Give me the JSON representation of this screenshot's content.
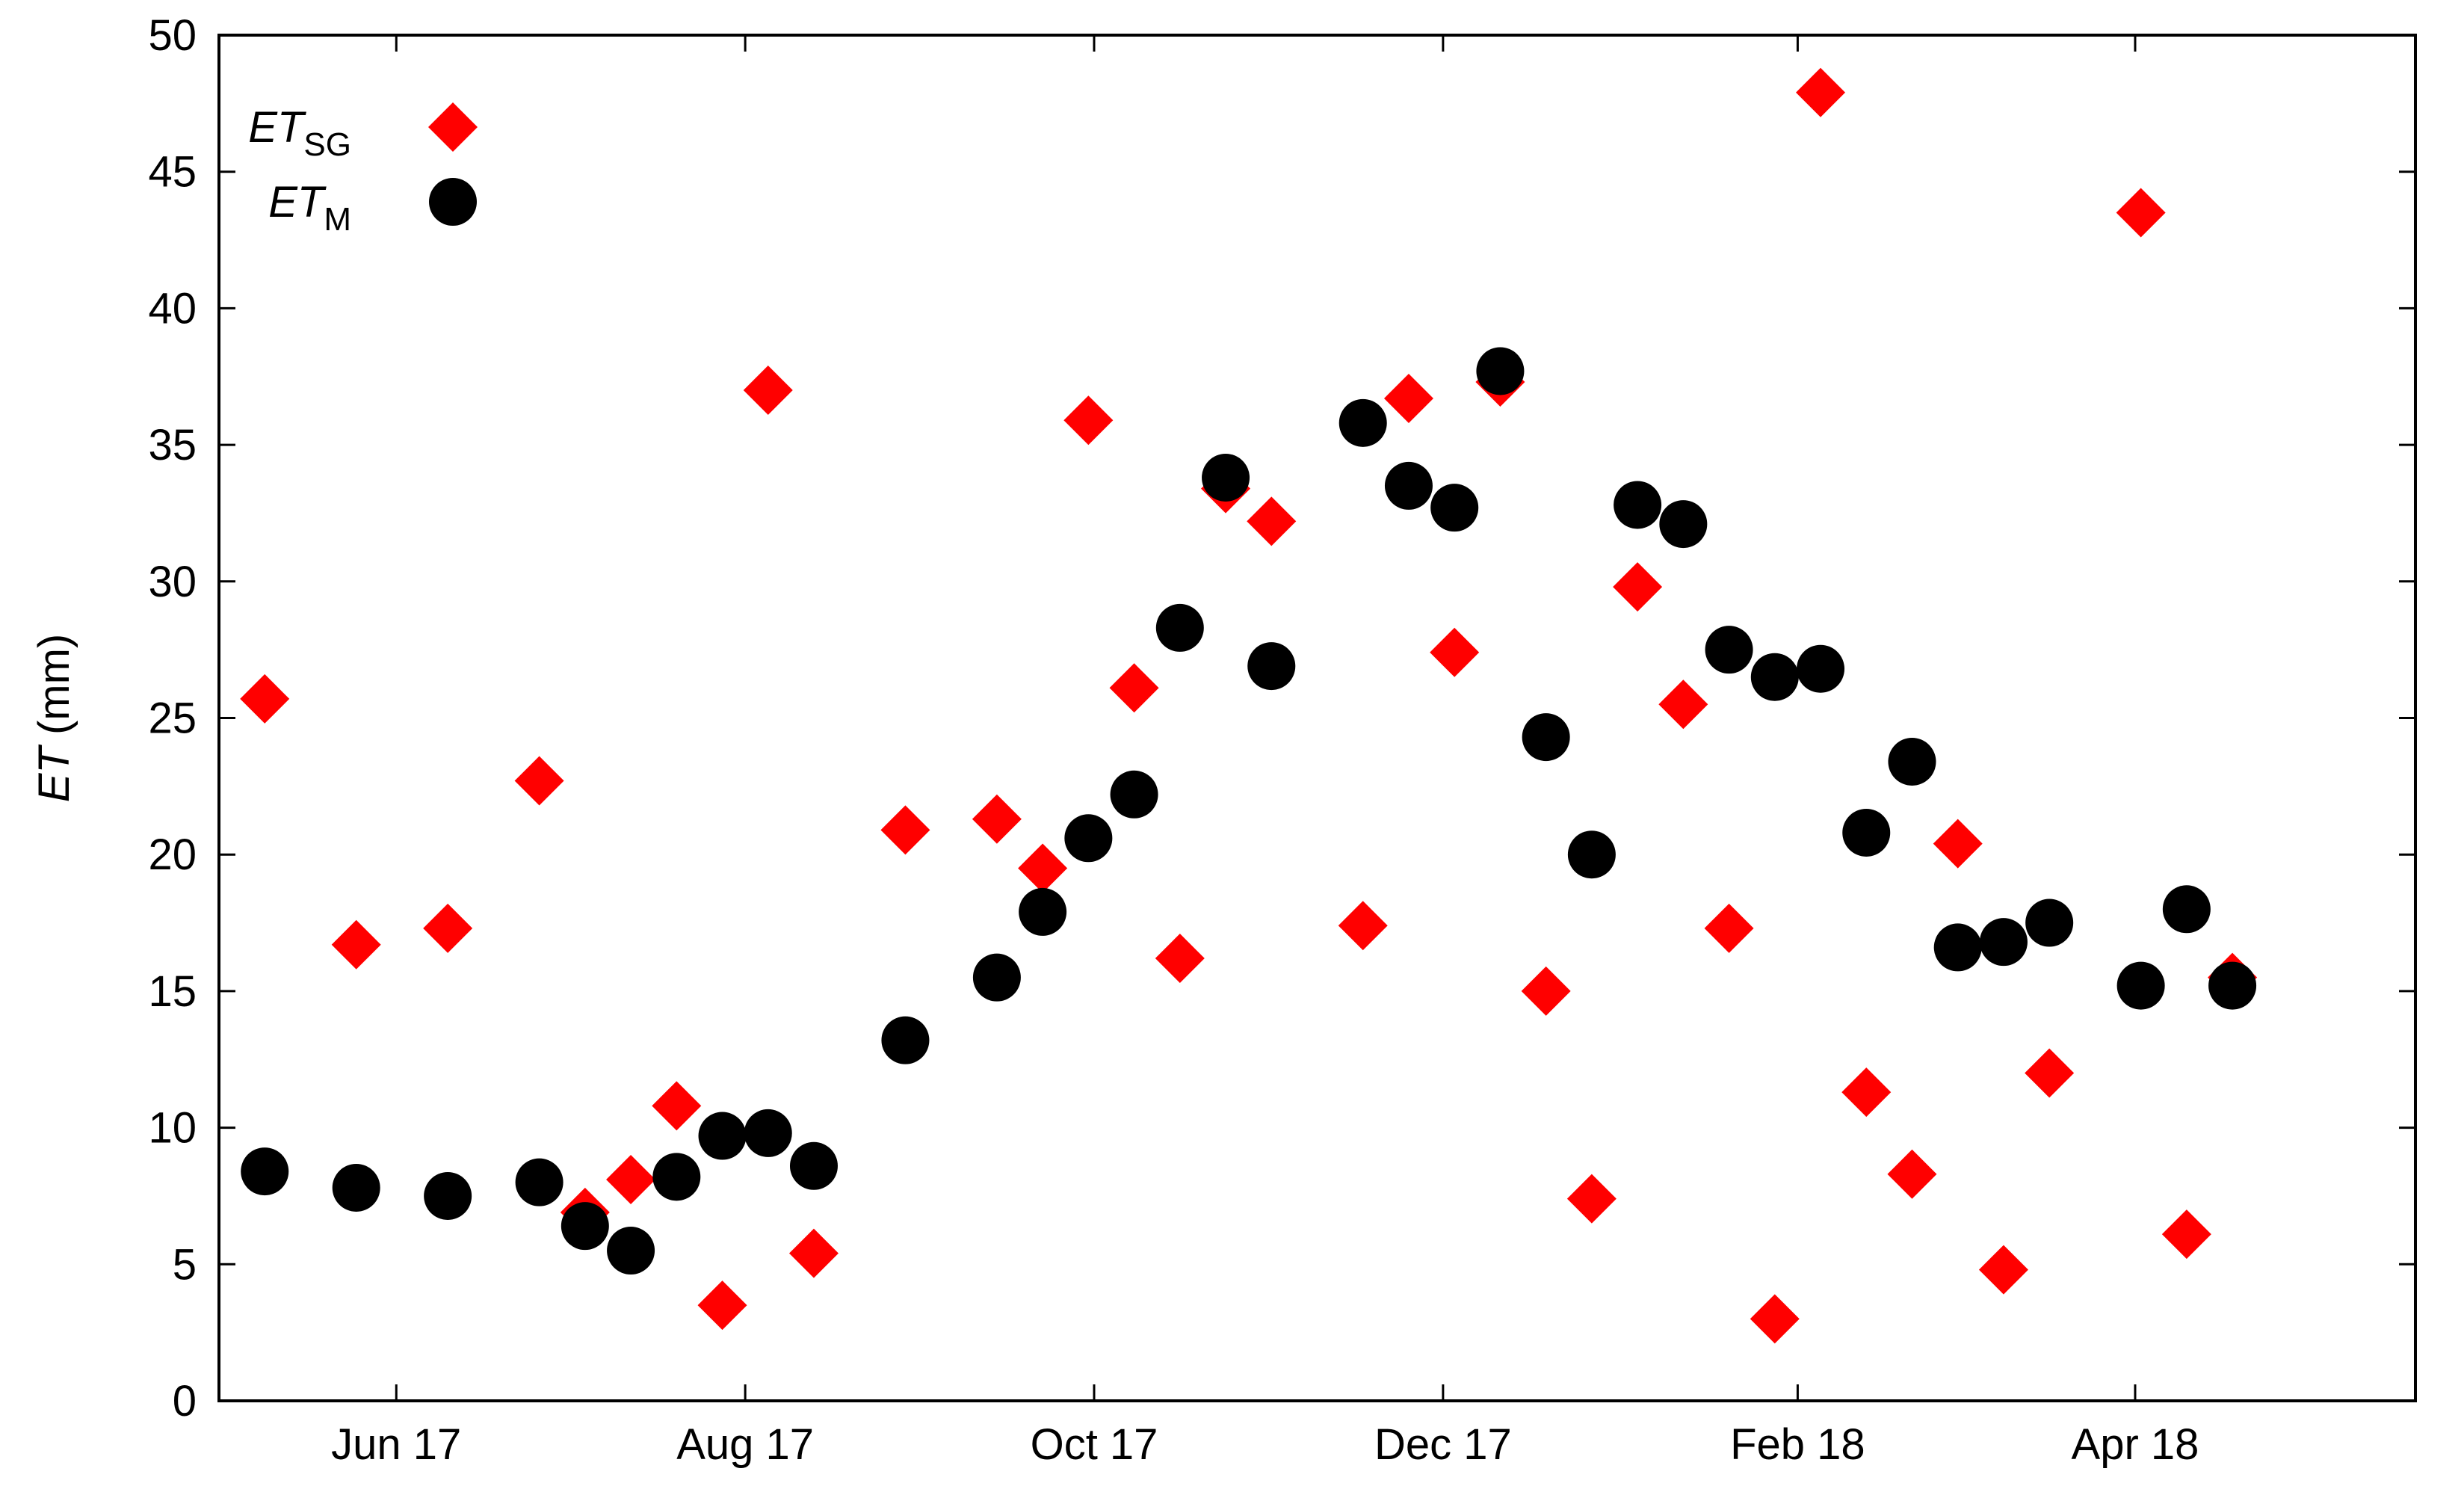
{
  "chart_data": {
    "type": "scatter",
    "title": "",
    "ylabel": {
      "var": "ET",
      "unit": " (mm)"
    },
    "ylim": [
      0,
      50
    ],
    "yticks": [
      0,
      5,
      10,
      15,
      20,
      25,
      30,
      35,
      40,
      45,
      50
    ],
    "xlim": [
      "2017-05-01",
      "2018-05-20"
    ],
    "xticks": [
      {
        "date": "2017-06-01",
        "label": "Jun 17"
      },
      {
        "date": "2017-08-01",
        "label": "Aug 17"
      },
      {
        "date": "2017-10-01",
        "label": "Oct 17"
      },
      {
        "date": "2017-12-01",
        "label": "Dec 17"
      },
      {
        "date": "2018-02-01",
        "label": "Feb 18"
      },
      {
        "date": "2018-04-01",
        "label": "Apr 18"
      }
    ],
    "grid": false,
    "legend_position": "top-left",
    "series": [
      {
        "name": "ET_SG",
        "legend_main": "ET",
        "legend_sub": "SG",
        "marker": "diamond",
        "color": "#ff0000",
        "points": [
          {
            "x": "2017-05-09",
            "y": 25.7
          },
          {
            "x": "2017-05-25",
            "y": 16.7
          },
          {
            "x": "2017-06-10",
            "y": 17.3
          },
          {
            "x": "2017-06-26",
            "y": 22.7
          },
          {
            "x": "2017-07-04",
            "y": 6.9
          },
          {
            "x": "2017-07-12",
            "y": 8.1
          },
          {
            "x": "2017-07-20",
            "y": 10.8
          },
          {
            "x": "2017-07-28",
            "y": 3.5
          },
          {
            "x": "2017-08-05",
            "y": 37.0
          },
          {
            "x": "2017-08-13",
            "y": 5.4
          },
          {
            "x": "2017-08-29",
            "y": 20.9
          },
          {
            "x": "2017-09-14",
            "y": 21.3
          },
          {
            "x": "2017-09-22",
            "y": 19.5
          },
          {
            "x": "2017-09-30",
            "y": 35.9
          },
          {
            "x": "2017-10-08",
            "y": 26.1
          },
          {
            "x": "2017-10-16",
            "y": 16.2
          },
          {
            "x": "2017-10-24",
            "y": 33.4
          },
          {
            "x": "2017-11-01",
            "y": 32.2
          },
          {
            "x": "2017-11-17",
            "y": 17.4
          },
          {
            "x": "2017-11-25",
            "y": 36.7
          },
          {
            "x": "2017-12-03",
            "y": 27.4
          },
          {
            "x": "2017-12-11",
            "y": 37.3
          },
          {
            "x": "2017-12-19",
            "y": 15.0
          },
          {
            "x": "2017-12-27",
            "y": 7.4
          },
          {
            "x": "2018-01-04",
            "y": 29.8
          },
          {
            "x": "2018-01-12",
            "y": 25.5
          },
          {
            "x": "2018-01-20",
            "y": 17.3
          },
          {
            "x": "2018-01-28",
            "y": 3.0
          },
          {
            "x": "2018-02-05",
            "y": 47.9
          },
          {
            "x": "2018-02-13",
            "y": 11.3
          },
          {
            "x": "2018-02-21",
            "y": 8.3
          },
          {
            "x": "2018-03-01",
            "y": 20.4
          },
          {
            "x": "2018-03-09",
            "y": 4.8
          },
          {
            "x": "2018-03-17",
            "y": 12.0
          },
          {
            "x": "2018-04-02",
            "y": 43.5
          },
          {
            "x": "2018-04-10",
            "y": 6.1
          },
          {
            "x": "2018-04-18",
            "y": 15.5
          }
        ]
      },
      {
        "name": "ET_M",
        "legend_main": "ET",
        "legend_sub": "M",
        "marker": "circle",
        "color": "#000000",
        "points": [
          {
            "x": "2017-05-09",
            "y": 8.4
          },
          {
            "x": "2017-05-25",
            "y": 7.8
          },
          {
            "x": "2017-06-10",
            "y": 7.5
          },
          {
            "x": "2017-06-26",
            "y": 8.0
          },
          {
            "x": "2017-07-04",
            "y": 6.4
          },
          {
            "x": "2017-07-12",
            "y": 5.5
          },
          {
            "x": "2017-07-20",
            "y": 8.2
          },
          {
            "x": "2017-07-28",
            "y": 9.7
          },
          {
            "x": "2017-08-05",
            "y": 9.8
          },
          {
            "x": "2017-08-13",
            "y": 8.6
          },
          {
            "x": "2017-08-29",
            "y": 13.2
          },
          {
            "x": "2017-09-14",
            "y": 15.5
          },
          {
            "x": "2017-09-22",
            "y": 17.9
          },
          {
            "x": "2017-09-30",
            "y": 20.6
          },
          {
            "x": "2017-10-08",
            "y": 22.2
          },
          {
            "x": "2017-10-16",
            "y": 28.3
          },
          {
            "x": "2017-10-24",
            "y": 33.8
          },
          {
            "x": "2017-11-01",
            "y": 26.9
          },
          {
            "x": "2017-11-17",
            "y": 35.8
          },
          {
            "x": "2017-11-25",
            "y": 33.5
          },
          {
            "x": "2017-12-03",
            "y": 32.7
          },
          {
            "x": "2017-12-11",
            "y": 37.7
          },
          {
            "x": "2017-12-19",
            "y": 24.3
          },
          {
            "x": "2017-12-27",
            "y": 20.0
          },
          {
            "x": "2018-01-04",
            "y": 32.8
          },
          {
            "x": "2018-01-12",
            "y": 32.1
          },
          {
            "x": "2018-01-20",
            "y": 27.5
          },
          {
            "x": "2018-01-28",
            "y": 26.5
          },
          {
            "x": "2018-02-05",
            "y": 26.8
          },
          {
            "x": "2018-02-13",
            "y": 20.8
          },
          {
            "x": "2018-02-21",
            "y": 23.4
          },
          {
            "x": "2018-03-01",
            "y": 16.6
          },
          {
            "x": "2018-03-09",
            "y": 16.8
          },
          {
            "x": "2018-03-17",
            "y": 17.5
          },
          {
            "x": "2018-04-02",
            "y": 15.2
          },
          {
            "x": "2018-04-10",
            "y": 18.0
          },
          {
            "x": "2018-04-18",
            "y": 15.2
          }
        ]
      }
    ]
  }
}
